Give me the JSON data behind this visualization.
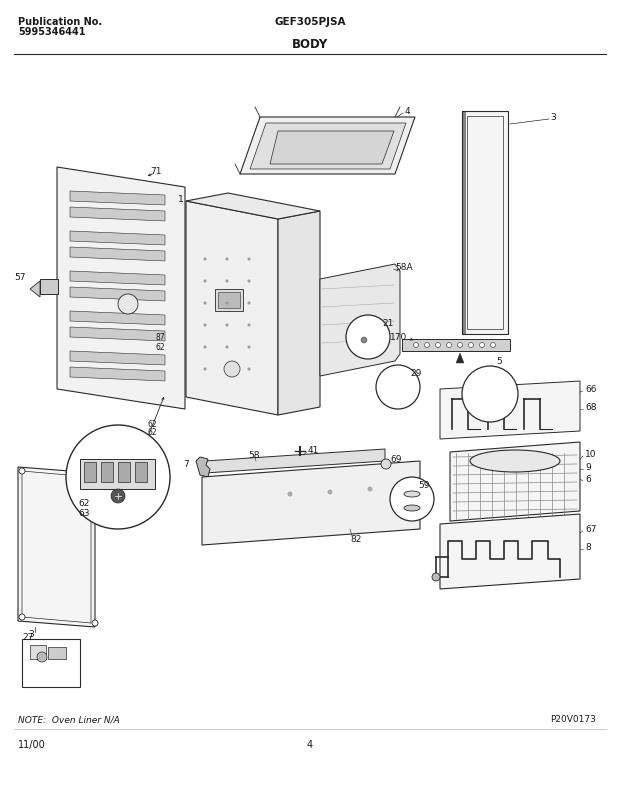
{
  "pub_label": "Publication No.",
  "pub_num": "5995346441",
  "model": "GEF305PJSA",
  "section": "BODY",
  "footer_date": "11/00",
  "footer_page": "4",
  "note": "NOTE:  Oven Liner N/A",
  "part_id": "P20V0173",
  "bg": "#ffffff",
  "lc": "#2a2a2a",
  "fig_w": 6.2,
  "fig_h": 8.03,
  "dpi": 100
}
